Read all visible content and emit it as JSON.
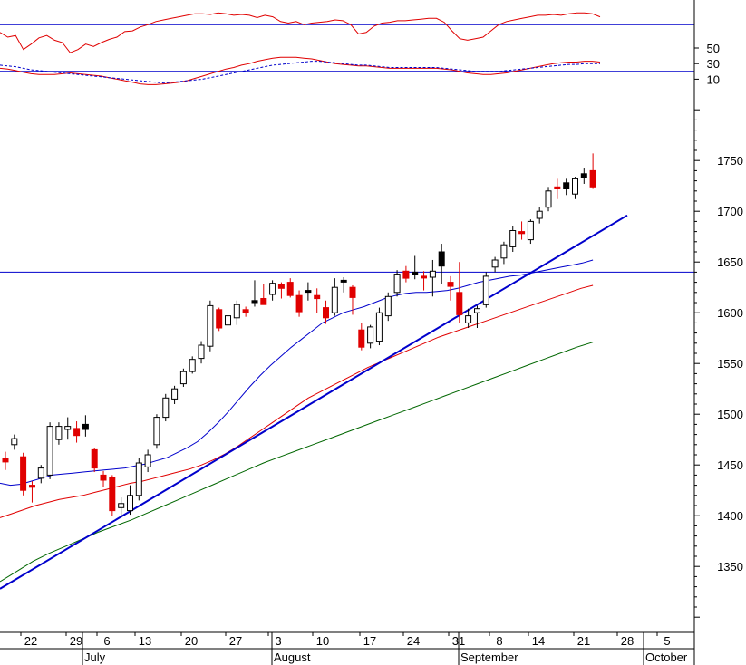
{
  "chart_data": {
    "type": "candlestick",
    "indicator_panel": {
      "y_tick_labels": [
        "50",
        "30",
        "10"
      ],
      "y_tick_values": [
        50,
        30,
        10
      ],
      "ylim": [
        0,
        100
      ],
      "overbought_level": 80,
      "oversold_level": 20,
      "series": [
        {
          "color": "#e00000",
          "values": [
            70,
            64,
            66,
            48,
            55,
            63,
            66,
            60,
            57,
            44,
            48,
            55,
            52,
            57,
            61,
            64,
            71,
            72,
            77,
            80,
            84,
            86,
            88,
            90,
            92,
            94,
            94,
            93,
            95,
            94,
            92,
            93,
            92,
            89,
            92,
            90,
            84,
            82,
            84,
            80,
            82,
            83,
            84,
            86,
            85,
            80,
            68,
            70,
            78,
            82,
            83,
            85,
            85,
            86,
            87,
            88,
            88,
            83,
            72,
            62,
            60,
            62,
            64,
            72,
            80,
            84,
            86,
            88,
            90,
            92,
            92,
            93,
            92,
            94,
            95,
            95,
            94,
            90
          ]
        },
        {
          "color": "#e00000",
          "values": [
            24,
            23,
            21,
            19,
            17,
            16,
            16,
            16,
            17,
            18,
            17,
            16,
            15,
            14,
            12,
            10,
            8,
            6,
            4,
            3,
            3,
            4,
            5,
            6,
            8,
            11,
            14,
            17,
            20,
            23,
            25,
            28,
            30,
            33,
            35,
            37,
            38,
            38,
            38,
            37,
            36,
            34,
            32,
            30,
            29,
            28,
            27,
            27,
            26,
            25,
            24,
            24,
            24,
            24,
            24,
            24,
            24,
            23,
            22,
            20,
            18,
            17,
            16,
            16,
            17,
            18,
            20,
            22,
            24,
            26,
            28,
            30,
            31,
            32,
            32,
            33,
            33,
            32
          ]
        },
        {
          "color": "#0000cc",
          "dashed": true,
          "values": [
            28,
            27,
            26,
            24,
            22,
            21,
            20,
            19,
            18,
            17,
            16,
            15,
            14,
            13,
            12,
            11,
            10,
            9,
            8,
            7,
            6,
            5,
            6,
            7,
            8,
            9,
            10,
            12,
            14,
            16,
            18,
            20,
            22,
            24,
            26,
            28,
            29,
            30,
            31,
            32,
            33,
            33,
            32,
            31,
            30,
            29,
            28,
            28,
            27,
            26,
            25,
            25,
            25,
            25,
            25,
            25,
            25,
            24,
            23,
            22,
            21,
            20,
            20,
            20,
            20,
            21,
            22,
            23,
            24,
            25,
            26,
            27,
            28,
            29,
            29,
            30,
            30,
            30
          ]
        }
      ]
    },
    "price_panel": {
      "y_tick_values": [
        1750,
        1700,
        1650,
        1600,
        1550,
        1500,
        1450,
        1400,
        1350
      ],
      "y_tick_labels": [
        "1750",
        "1700",
        "1650",
        "1600",
        "1550",
        "1500",
        "1450",
        "1400",
        "1350"
      ],
      "ylim": [
        1285,
        1810
      ],
      "horizontal_line": 1640,
      "candles": [
        {
          "o": 1456,
          "h": 1463,
          "l": 1445,
          "c": 1453,
          "color": "#e00000"
        },
        {
          "o": 1470,
          "h": 1480,
          "l": 1465,
          "c": 1476,
          "color": "#ffffff"
        },
        {
          "o": 1458,
          "h": 1462,
          "l": 1420,
          "c": 1425,
          "color": "#e00000"
        },
        {
          "o": 1430,
          "h": 1434,
          "l": 1413,
          "c": 1428,
          "color": "#e00000"
        },
        {
          "o": 1437,
          "h": 1450,
          "l": 1432,
          "c": 1447,
          "color": "#ffffff"
        },
        {
          "o": 1440,
          "h": 1492,
          "l": 1436,
          "c": 1488,
          "color": "#ffffff"
        },
        {
          "o": 1475,
          "h": 1492,
          "l": 1470,
          "c": 1488,
          "color": "#ffffff"
        },
        {
          "o": 1485,
          "h": 1497,
          "l": 1475,
          "c": 1488,
          "color": "#ffffff"
        },
        {
          "o": 1486,
          "h": 1493,
          "l": 1472,
          "c": 1479,
          "color": "#e00000"
        },
        {
          "o": 1485,
          "h": 1499,
          "l": 1478,
          "c": 1490,
          "color": "#000000"
        },
        {
          "o": 1465,
          "h": 1467,
          "l": 1443,
          "c": 1447,
          "color": "#e00000"
        },
        {
          "o": 1440,
          "h": 1444,
          "l": 1428,
          "c": 1435,
          "color": "#e00000"
        },
        {
          "o": 1438,
          "h": 1440,
          "l": 1400,
          "c": 1405,
          "color": "#e00000"
        },
        {
          "o": 1408,
          "h": 1418,
          "l": 1398,
          "c": 1412,
          "color": "#ffffff"
        },
        {
          "o": 1405,
          "h": 1430,
          "l": 1401,
          "c": 1420,
          "color": "#ffffff"
        },
        {
          "o": 1420,
          "h": 1457,
          "l": 1415,
          "c": 1452,
          "color": "#ffffff"
        },
        {
          "o": 1448,
          "h": 1465,
          "l": 1443,
          "c": 1460,
          "color": "#ffffff"
        },
        {
          "o": 1470,
          "h": 1500,
          "l": 1466,
          "c": 1497,
          "color": "#ffffff"
        },
        {
          "o": 1497,
          "h": 1520,
          "l": 1493,
          "c": 1516,
          "color": "#ffffff"
        },
        {
          "o": 1515,
          "h": 1528,
          "l": 1510,
          "c": 1525,
          "color": "#ffffff"
        },
        {
          "o": 1530,
          "h": 1545,
          "l": 1527,
          "c": 1542,
          "color": "#ffffff"
        },
        {
          "o": 1542,
          "h": 1557,
          "l": 1540,
          "c": 1554,
          "color": "#ffffff"
        },
        {
          "o": 1555,
          "h": 1572,
          "l": 1550,
          "c": 1568,
          "color": "#ffffff"
        },
        {
          "o": 1567,
          "h": 1612,
          "l": 1562,
          "c": 1607,
          "color": "#ffffff"
        },
        {
          "o": 1603,
          "h": 1605,
          "l": 1582,
          "c": 1585,
          "color": "#e00000"
        },
        {
          "o": 1588,
          "h": 1600,
          "l": 1585,
          "c": 1597,
          "color": "#ffffff"
        },
        {
          "o": 1595,
          "h": 1612,
          "l": 1588,
          "c": 1608,
          "color": "#ffffff"
        },
        {
          "o": 1603,
          "h": 1606,
          "l": 1596,
          "c": 1600,
          "color": "#e00000"
        },
        {
          "o": 1612,
          "h": 1632,
          "l": 1606,
          "c": 1610,
          "color": "#000000"
        },
        {
          "o": 1614,
          "h": 1628,
          "l": 1608,
          "c": 1608,
          "color": "#e00000"
        },
        {
          "o": 1618,
          "h": 1632,
          "l": 1612,
          "c": 1629,
          "color": "#ffffff"
        },
        {
          "o": 1624,
          "h": 1630,
          "l": 1614,
          "c": 1628,
          "color": "#e00000"
        },
        {
          "o": 1630,
          "h": 1634,
          "l": 1615,
          "c": 1617,
          "color": "#e00000"
        },
        {
          "o": 1617,
          "h": 1622,
          "l": 1596,
          "c": 1601,
          "color": "#e00000"
        },
        {
          "o": 1622,
          "h": 1630,
          "l": 1612,
          "c": 1622,
          "color": "#000000"
        },
        {
          "o": 1617,
          "h": 1624,
          "l": 1600,
          "c": 1614,
          "color": "#e00000"
        },
        {
          "o": 1605,
          "h": 1612,
          "l": 1589,
          "c": 1595,
          "color": "#e00000"
        },
        {
          "o": 1600,
          "h": 1634,
          "l": 1597,
          "c": 1625,
          "color": "#ffffff"
        },
        {
          "o": 1632,
          "h": 1635,
          "l": 1620,
          "c": 1632,
          "color": "#000000"
        },
        {
          "o": 1625,
          "h": 1627,
          "l": 1598,
          "c": 1615,
          "color": "#e00000"
        },
        {
          "o": 1583,
          "h": 1590,
          "l": 1563,
          "c": 1566,
          "color": "#e00000"
        },
        {
          "o": 1570,
          "h": 1588,
          "l": 1565,
          "c": 1586,
          "color": "#ffffff"
        },
        {
          "o": 1572,
          "h": 1605,
          "l": 1568,
          "c": 1600,
          "color": "#ffffff"
        },
        {
          "o": 1597,
          "h": 1620,
          "l": 1592,
          "c": 1616,
          "color": "#ffffff"
        },
        {
          "o": 1620,
          "h": 1642,
          "l": 1616,
          "c": 1638,
          "color": "#ffffff"
        },
        {
          "o": 1641,
          "h": 1646,
          "l": 1630,
          "c": 1634,
          "color": "#e00000"
        },
        {
          "o": 1638,
          "h": 1656,
          "l": 1633,
          "c": 1640,
          "color": "#000000"
        },
        {
          "o": 1636,
          "h": 1641,
          "l": 1622,
          "c": 1636,
          "color": "#e00000"
        },
        {
          "o": 1635,
          "h": 1652,
          "l": 1616,
          "c": 1641,
          "color": "#ffffff"
        },
        {
          "o": 1646,
          "h": 1668,
          "l": 1628,
          "c": 1660,
          "color": "#000000"
        },
        {
          "o": 1630,
          "h": 1636,
          "l": 1612,
          "c": 1626,
          "color": "#e00000"
        },
        {
          "o": 1620,
          "h": 1650,
          "l": 1590,
          "c": 1598,
          "color": "#e00000"
        },
        {
          "o": 1590,
          "h": 1604,
          "l": 1585,
          "c": 1597,
          "color": "#ffffff"
        },
        {
          "o": 1600,
          "h": 1607,
          "l": 1585,
          "c": 1604,
          "color": "#ffffff"
        },
        {
          "o": 1608,
          "h": 1640,
          "l": 1605,
          "c": 1636,
          "color": "#ffffff"
        },
        {
          "o": 1645,
          "h": 1655,
          "l": 1640,
          "c": 1652,
          "color": "#ffffff"
        },
        {
          "o": 1654,
          "h": 1670,
          "l": 1648,
          "c": 1667,
          "color": "#ffffff"
        },
        {
          "o": 1665,
          "h": 1685,
          "l": 1660,
          "c": 1681,
          "color": "#ffffff"
        },
        {
          "o": 1680,
          "h": 1690,
          "l": 1672,
          "c": 1678,
          "color": "#e00000"
        },
        {
          "o": 1672,
          "h": 1692,
          "l": 1668,
          "c": 1690,
          "color": "#ffffff"
        },
        {
          "o": 1693,
          "h": 1704,
          "l": 1688,
          "c": 1700,
          "color": "#ffffff"
        },
        {
          "o": 1704,
          "h": 1724,
          "l": 1700,
          "c": 1720,
          "color": "#ffffff"
        },
        {
          "o": 1722,
          "h": 1732,
          "l": 1712,
          "c": 1724,
          "color": "#e00000"
        },
        {
          "o": 1722,
          "h": 1732,
          "l": 1716,
          "c": 1728,
          "color": "#000000"
        },
        {
          "o": 1717,
          "h": 1734,
          "l": 1712,
          "c": 1732,
          "color": "#ffffff"
        },
        {
          "o": 1733,
          "h": 1743,
          "l": 1727,
          "c": 1737,
          "color": "#000000"
        },
        {
          "o": 1740,
          "h": 1757,
          "l": 1722,
          "c": 1724,
          "color": "#e00000"
        }
      ],
      "moving_averages": [
        {
          "color": "#0000cc",
          "values": [
            1432,
            1430,
            1431,
            1434,
            1437,
            1440,
            1441,
            1442,
            1443,
            1444,
            1445,
            1446,
            1447,
            1449,
            1451,
            1454,
            1457,
            1462,
            1467,
            1473,
            1482,
            1492,
            1503,
            1515,
            1527,
            1538,
            1548,
            1557,
            1566,
            1574,
            1582,
            1590,
            1595,
            1600,
            1603,
            1606,
            1610,
            1614,
            1617,
            1619,
            1620,
            1620,
            1621,
            1622,
            1624,
            1627,
            1630,
            1632,
            1634,
            1636,
            1637,
            1639,
            1641,
            1643,
            1645,
            1647,
            1649,
            1652
          ]
        },
        {
          "color": "#e00000",
          "values": [
            1398,
            1402,
            1406,
            1410,
            1413,
            1416,
            1418,
            1420,
            1423,
            1426,
            1429,
            1432,
            1434,
            1437,
            1440,
            1443,
            1446,
            1450,
            1455,
            1461,
            1468,
            1476,
            1484,
            1492,
            1500,
            1508,
            1516,
            1522,
            1528,
            1534,
            1540,
            1546,
            1551,
            1556,
            1561,
            1566,
            1571,
            1576,
            1580,
            1584,
            1588,
            1592,
            1596,
            1600,
            1604,
            1608,
            1612,
            1616,
            1620,
            1624,
            1627
          ]
        },
        {
          "color": "#006600",
          "values": [
            1335,
            1345,
            1355,
            1363,
            1370,
            1377,
            1384,
            1390,
            1396,
            1403,
            1410,
            1417,
            1424,
            1431,
            1438,
            1445,
            1452,
            1458,
            1464,
            1470,
            1476,
            1482,
            1488,
            1494,
            1500,
            1506,
            1512,
            1518,
            1524,
            1530,
            1536,
            1542,
            1548,
            1554,
            1560,
            1566,
            1571
          ]
        }
      ],
      "trendline": {
        "color": "#0000cc",
        "from_price": 1328,
        "to_price": 1696
      }
    },
    "x_axis": {
      "day_labels": [
        "22",
        "29",
        "6",
        "13",
        "20",
        "27",
        "3",
        "10",
        "17",
        "24",
        "31",
        "8",
        "14",
        "21",
        "28",
        "5"
      ],
      "month_labels": [
        "July",
        "August",
        "September",
        "October"
      ]
    }
  }
}
